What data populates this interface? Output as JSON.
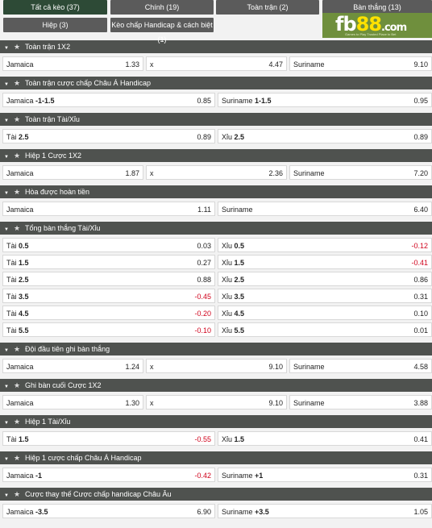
{
  "tabs": [
    {
      "label": "Tất cả kèo (37)",
      "active": true
    },
    {
      "label": "Chính (19)"
    },
    {
      "label": "Toàn trận (2)"
    },
    {
      "label": "Bàn thắng (13)"
    },
    {
      "label": "Hiệp (3)"
    },
    {
      "label": "Kèo chấp Handicap & cách biệt (1)"
    }
  ],
  "logo": {
    "text": "fb88.com",
    "tagline": "Games to Play  Trusted Place to Bet"
  },
  "markets": [
    {
      "title": "Toàn trận 1X2",
      "cols": 3,
      "rows": [
        [
          [
            "Jamaica",
            "",
            "1.33"
          ],
          [
            "x",
            "",
            "4.47"
          ],
          [
            "Suriname",
            "",
            "9.10"
          ]
        ]
      ]
    },
    {
      "title": "Toàn trận cược chấp Châu Á Handicap",
      "cols": 2,
      "rows": [
        [
          [
            "Jamaica",
            "-1-1.5",
            "0.85"
          ],
          [
            "Suriname",
            "1-1.5",
            "0.95"
          ]
        ]
      ]
    },
    {
      "title": "Toàn trận Tài/Xỉu",
      "cols": 2,
      "rows": [
        [
          [
            "Tài",
            "2.5",
            "0.89"
          ],
          [
            "Xỉu",
            "2.5",
            "0.89"
          ]
        ]
      ]
    },
    {
      "title": "Hiệp 1 Cược 1X2",
      "cols": 3,
      "rows": [
        [
          [
            "Jamaica",
            "",
            "1.87"
          ],
          [
            "x",
            "",
            "2.36"
          ],
          [
            "Suriname",
            "",
            "7.20"
          ]
        ]
      ]
    },
    {
      "title": "Hòa được hoàn tiền",
      "cols": 2,
      "rows": [
        [
          [
            "Jamaica",
            "",
            "1.11"
          ],
          [
            "Suriname",
            "",
            "6.40"
          ]
        ]
      ]
    },
    {
      "title": "Tổng bàn thắng Tài/Xỉu",
      "cols": 2,
      "rows": [
        [
          [
            "Tài",
            "0.5",
            "0.03"
          ],
          [
            "Xỉu",
            "0.5",
            "-0.12"
          ]
        ],
        [
          [
            "Tài",
            "1.5",
            "0.27"
          ],
          [
            "Xỉu",
            "1.5",
            "-0.41"
          ]
        ],
        [
          [
            "Tài",
            "2.5",
            "0.88"
          ],
          [
            "Xỉu",
            "2.5",
            "0.86"
          ]
        ],
        [
          [
            "Tài",
            "3.5",
            "-0.45"
          ],
          [
            "Xỉu",
            "3.5",
            "0.31"
          ]
        ],
        [
          [
            "Tài",
            "4.5",
            "-0.20"
          ],
          [
            "Xỉu",
            "4.5",
            "0.10"
          ]
        ],
        [
          [
            "Tài",
            "5.5",
            "-0.10"
          ],
          [
            "Xỉu",
            "5.5",
            "0.01"
          ]
        ]
      ]
    },
    {
      "title": "Đội đầu tiên ghi bàn thắng",
      "cols": 3,
      "rows": [
        [
          [
            "Jamaica",
            "",
            "1.24"
          ],
          [
            "x",
            "",
            "9.10"
          ],
          [
            "Suriname",
            "",
            "4.58"
          ]
        ]
      ]
    },
    {
      "title": "Ghi bàn cuối Cược 1X2",
      "cols": 3,
      "rows": [
        [
          [
            "Jamaica",
            "",
            "1.30"
          ],
          [
            "x",
            "",
            "9.10"
          ],
          [
            "Suriname",
            "",
            "3.88"
          ]
        ]
      ]
    },
    {
      "title": "Hiệp 1 Tài/Xỉu",
      "cols": 2,
      "rows": [
        [
          [
            "Tài",
            "1.5",
            "-0.55"
          ],
          [
            "Xỉu",
            "1.5",
            "0.41"
          ]
        ]
      ]
    },
    {
      "title": "Hiệp 1 cược chấp Châu Á Handicap",
      "cols": 2,
      "rows": [
        [
          [
            "Jamaica",
            "-1",
            "-0.42"
          ],
          [
            "Suriname",
            "+1",
            "0.31"
          ]
        ]
      ]
    },
    {
      "title": "Cược thay thế Cược chấp handicap Châu Âu",
      "cols": 2,
      "rows": [
        [
          [
            "Jamaica",
            "-3.5",
            "6.90"
          ],
          [
            "Suriname",
            "+3.5",
            "1.05"
          ]
        ]
      ]
    }
  ],
  "colors": {
    "header": "#4f524f",
    "tab": "#5b5b5b",
    "tab_active": "#2d4a36",
    "negative": "#d0021b"
  }
}
